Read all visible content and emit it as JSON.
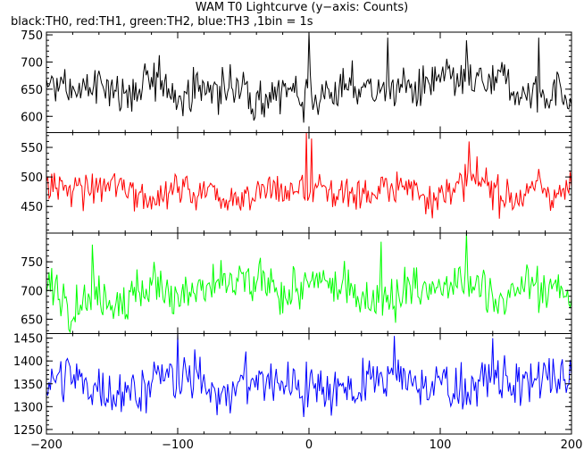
{
  "chart_data": {
    "type": "line",
    "title": "WAM T0 Lightcurve (y−axis: Counts)",
    "subtitle": "black:TH0, red:TH1, green:TH2, blue:TH3 ,1bin = 1s",
    "xlim": [
      -200,
      200
    ],
    "x_ticks": [
      -200,
      -100,
      0,
      100,
      200
    ],
    "x_tick_labels": [
      "−200",
      "−100",
      "0",
      "100",
      "200"
    ],
    "grid": false,
    "legend": "none",
    "panels": [
      {
        "name": "TH0",
        "color": "#000000",
        "ylim": [
          570,
          755
        ],
        "y_ticks": [
          600,
          650,
          700,
          750
        ],
        "mean": 650,
        "noise": 22,
        "spikes": [
          {
            "x": 0,
            "y": 755
          },
          {
            "x": 60,
            "y": 745
          },
          {
            "x": 120,
            "y": 740
          },
          {
            "x": 175,
            "y": 745
          }
        ]
      },
      {
        "name": "TH1",
        "color": "#ff0000",
        "ylim": [
          405,
          575
        ],
        "y_ticks": [
          450,
          500,
          550
        ],
        "mean": 478,
        "noise": 17,
        "spikes": [
          {
            "x": -2,
            "y": 575
          },
          {
            "x": 2,
            "y": 565
          },
          {
            "x": 122,
            "y": 560
          }
        ]
      },
      {
        "name": "TH2",
        "color": "#00ff00",
        "ylim": [
          625,
          800
        ],
        "y_ticks": [
          650,
          700,
          750
        ],
        "mean": 700,
        "noise": 22,
        "spikes": [
          {
            "x": 120,
            "y": 800
          },
          {
            "x": 55,
            "y": 785
          },
          {
            "x": -165,
            "y": 780
          }
        ]
      },
      {
        "name": "TH3",
        "color": "#0000ff",
        "ylim": [
          1240,
          1460
        ],
        "y_ticks": [
          1250,
          1300,
          1350,
          1400,
          1450
        ],
        "mean": 1350,
        "noise": 30,
        "spikes": [
          {
            "x": -100,
            "y": 1460
          },
          {
            "x": 65,
            "y": 1455
          },
          {
            "x": 140,
            "y": 1450
          }
        ]
      }
    ]
  }
}
